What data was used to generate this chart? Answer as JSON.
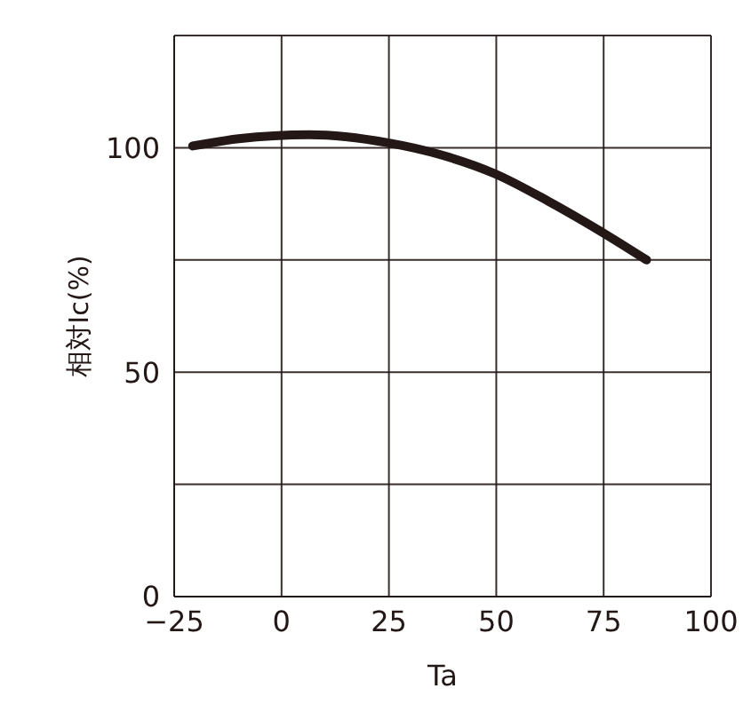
{
  "chart_data": {
    "type": "line",
    "xlabel": "Ta",
    "ylabel": "相対Ic(%)",
    "x": [
      -20.7,
      -10,
      6.5,
      24.8,
      37.2,
      49.7,
      62.1,
      74.6,
      85
    ],
    "series": [
      {
        "color": "#231816",
        "values": [
          100.4,
          102,
          102.9,
          101.1,
          98.4,
          94.2,
          88.1,
          81.2,
          75
        ]
      }
    ],
    "xlim": [
      -25,
      100
    ],
    "xticks": [
      -25,
      0,
      25,
      50,
      75,
      100
    ],
    "ylim": [
      0,
      125
    ],
    "yticks": [
      0,
      {
        "value": 25,
        "label": null
      },
      50,
      {
        "value": 75,
        "label": null
      },
      100,
      {
        "value": 125,
        "label": null
      }
    ],
    "grid": true,
    "marker": "none",
    "line_style": "solid"
  }
}
